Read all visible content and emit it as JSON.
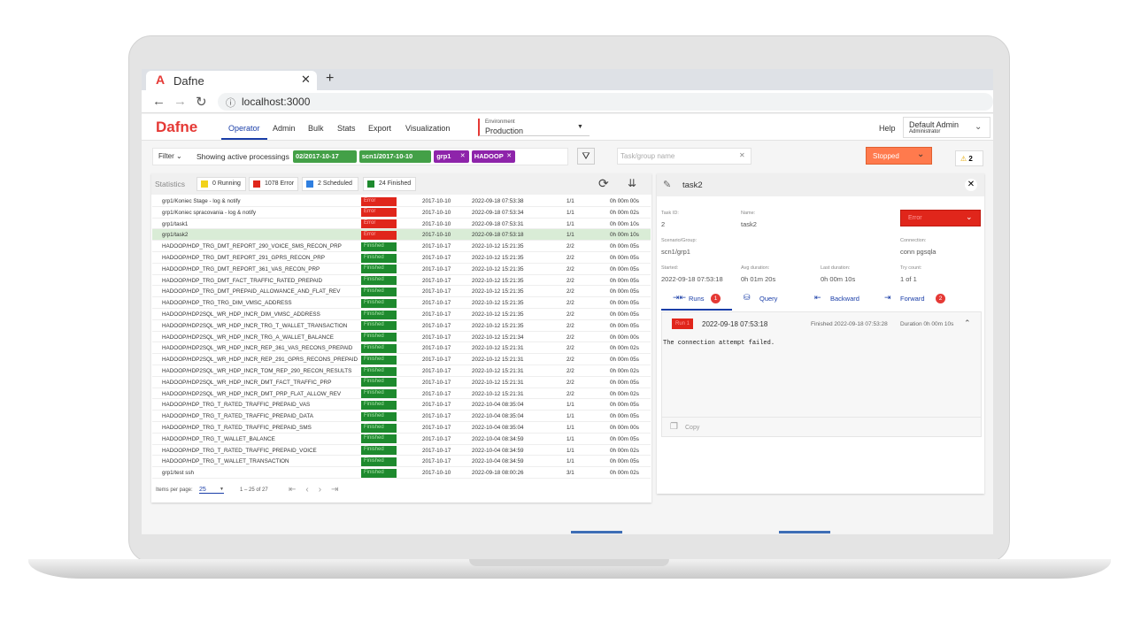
{
  "browser": {
    "tab_title": "Dafne",
    "url": "localhost:3000"
  },
  "nav": {
    "logo": "Dafne",
    "tabs": [
      "Operator",
      "Admin",
      "Bulk",
      "Stats",
      "Export",
      "Visualization"
    ],
    "active_tab": 0,
    "environment_label": "Environment",
    "environment": "Production",
    "help": "Help",
    "user": "Default Admin",
    "role": "Administrator"
  },
  "filter": {
    "label": "Filter",
    "text": "Showing active processings",
    "chips": [
      {
        "label": "02/2017-10-17",
        "color": "#43a047"
      },
      {
        "label": "scn1/2017-10-10",
        "color": "#43a047"
      },
      {
        "label": "grp1",
        "color": "#8e24aa"
      },
      {
        "label": "HADOOP",
        "color": "#8e24aa"
      }
    ],
    "search_placeholder": "Task/group name",
    "state": "Stopped",
    "warnings": "2"
  },
  "statistics": {
    "title": "Statistics",
    "items": [
      {
        "label": "0 Running",
        "color": "#f2d21b"
      },
      {
        "label": "1078 Error",
        "color": "#e0261b"
      },
      {
        "label": "2 Scheduled",
        "color": "#2f7fe0"
      },
      {
        "label": "24 Finished",
        "color": "#1e8a2e"
      }
    ]
  },
  "status_colors": {
    "Error": "#e0261b",
    "Finished": "#1e8a2e"
  },
  "table": {
    "selected_row": 3,
    "rows": [
      [
        "grp1/Koniec Stage - log & notify",
        "Error",
        "2017-10-10",
        "2022-09-18 07:53:38",
        "1/1",
        "0h 00m 00s"
      ],
      [
        "grp1/Koniec spracovania - log & notify",
        "Error",
        "2017-10-10",
        "2022-09-18 07:53:34",
        "1/1",
        "0h 00m 02s"
      ],
      [
        "grp1/task1",
        "Error",
        "2017-10-10",
        "2022-09-18 07:53:31",
        "1/1",
        "0h 00m 10s"
      ],
      [
        "grp1/task2",
        "Error",
        "2017-10-10",
        "2022-09-18 07:53:18",
        "1/1",
        "0h 00m 10s"
      ],
      [
        "HADOOP/HDP_TRG_DMT_REPORT_290_VOICE_SMS_RECON_PRP",
        "Finished",
        "2017-10-17",
        "2022-10-12 15:21:35",
        "2/2",
        "0h 00m 05s"
      ],
      [
        "HADOOP/HDP_TRG_DMT_REPORT_291_GPRS_RECON_PRP",
        "Finished",
        "2017-10-17",
        "2022-10-12 15:21:35",
        "2/2",
        "0h 00m 05s"
      ],
      [
        "HADOOP/HDP_TRG_DMT_REPORT_361_VAS_RECON_PRP",
        "Finished",
        "2017-10-17",
        "2022-10-12 15:21:35",
        "2/2",
        "0h 00m 05s"
      ],
      [
        "HADOOP/HDP_TRG_DMT_FACT_TRAFFIC_RATED_PREPAID",
        "Finished",
        "2017-10-17",
        "2022-10-12 15:21:35",
        "2/2",
        "0h 00m 05s"
      ],
      [
        "HADOOP/HDP_TRG_DMT_PREPAID_ALLOWANCE_AND_FLAT_REV",
        "Finished",
        "2017-10-17",
        "2022-10-12 15:21:35",
        "2/2",
        "0h 00m 05s"
      ],
      [
        "HADOOP/HDP_TRG_TRG_DIM_VMSC_ADDRESS",
        "Finished",
        "2017-10-17",
        "2022-10-12 15:21:35",
        "2/2",
        "0h 00m 05s"
      ],
      [
        "HADOOP/HDP2SQL_WR_HDP_INCR_DIM_VMSC_ADDRESS",
        "Finished",
        "2017-10-17",
        "2022-10-12 15:21:35",
        "2/2",
        "0h 00m 05s"
      ],
      [
        "HADOOP/HDP2SQL_WR_HDP_INCR_TRG_T_WALLET_TRANSACTION",
        "Finished",
        "2017-10-17",
        "2022-10-12 15:21:35",
        "2/2",
        "0h 00m 05s"
      ],
      [
        "HADOOP/HDP2SQL_WR_HDP_INCR_TRG_A_WALLET_BALANCE",
        "Finished",
        "2017-10-17",
        "2022-10-12 15:21:34",
        "2/2",
        "0h 00m 00s"
      ],
      [
        "HADOOP/HDP2SQL_WR_HDP_INCR_REP_361_VAS_RECONS_PREPAID",
        "Finished",
        "2017-10-17",
        "2022-10-12 15:21:31",
        "2/2",
        "0h 00m 02s"
      ],
      [
        "HADOOP/HDP2SQL_WR_HDP_INCR_REP_291_GPRS_RECONS_PREPAID",
        "Finished",
        "2017-10-17",
        "2022-10-12 15:21:31",
        "2/2",
        "0h 00m 05s"
      ],
      [
        "HADOOP/HDP2SQL_WR_HDP_INCR_TOM_REP_290_RECON_RESULTS",
        "Finished",
        "2017-10-17",
        "2022-10-12 15:21:31",
        "2/2",
        "0h 00m 02s"
      ],
      [
        "HADOOP/HDP2SQL_WR_HDP_INCR_DMT_FACT_TRAFFIC_PRP",
        "Finished",
        "2017-10-17",
        "2022-10-12 15:21:31",
        "2/2",
        "0h 00m 05s"
      ],
      [
        "HADOOP/HDP2SQL_WR_HDP_INCR_DMT_PRP_FLAT_ALLOW_REV",
        "Finished",
        "2017-10-17",
        "2022-10-12 15:21:31",
        "2/2",
        "0h 00m 02s"
      ],
      [
        "HADOOP/HDP_TRG_T_RATED_TRAFFIC_PREPAID_VAS",
        "Finished",
        "2017-10-17",
        "2022-10-04 08:35:04",
        "1/1",
        "0h 00m 05s"
      ],
      [
        "HADOOP/HDP_TRG_T_RATED_TRAFFIC_PREPAID_DATA",
        "Finished",
        "2017-10-17",
        "2022-10-04 08:35:04",
        "1/1",
        "0h 00m 05s"
      ],
      [
        "HADOOP/HDP_TRG_T_RATED_TRAFFIC_PREPAID_SMS",
        "Finished",
        "2017-10-17",
        "2022-10-04 08:35:04",
        "1/1",
        "0h 00m 00s"
      ],
      [
        "HADOOP/HDP_TRG_T_WALLET_BALANCE",
        "Finished",
        "2017-10-17",
        "2022-10-04 08:34:59",
        "1/1",
        "0h 00m 05s"
      ],
      [
        "HADOOP/HDP_TRG_T_RATED_TRAFFIC_PREPAID_VOICE",
        "Finished",
        "2017-10-17",
        "2022-10-04 08:34:59",
        "1/1",
        "0h 00m 02s"
      ],
      [
        "HADOOP/HDP_TRG_T_WALLET_TRANSACTION",
        "Finished",
        "2017-10-17",
        "2022-10-04 08:34:59",
        "1/1",
        "0h 00m 05s"
      ],
      [
        "grp1/test ssh",
        "Finished",
        "2017-10-10",
        "2022-09-18 08:00:26",
        "3/1",
        "0h 00m 02s"
      ]
    ]
  },
  "pagination": {
    "label": "Items per page:",
    "size": "25",
    "range": "1 – 25 of 27"
  },
  "detail": {
    "title": "task2",
    "status": "Error",
    "fields": [
      {
        "label": "Task ID:",
        "value": "2"
      },
      {
        "label": "Name:",
        "value": "task2"
      },
      {
        "label": "Scenario/Group:",
        "value": "scn1/grp1"
      },
      {
        "label": "Connection:",
        "value": "conn pgsqla"
      },
      {
        "label": "Started:",
        "value": "2022-09-18 07:53:18"
      },
      {
        "label": "Avg duration:",
        "value": "0h 01m 20s"
      },
      {
        "label": "Last duration:",
        "value": "0h 00m 10s"
      },
      {
        "label": "Try count:",
        "value": "1 of 1"
      }
    ],
    "tabs": [
      {
        "label": "Runs",
        "badge": "1"
      },
      {
        "label": "Query"
      },
      {
        "label": "Backward"
      },
      {
        "label": "Forward",
        "badge": "2"
      }
    ],
    "run": {
      "badge": "Run 1",
      "started": "2022-09-18 07:53:18",
      "finished": "Finished 2022-09-18 07:53:28",
      "duration": "Duration 0h 00m 10s",
      "message": "The connection attempt failed.",
      "copy": "Copy"
    }
  }
}
